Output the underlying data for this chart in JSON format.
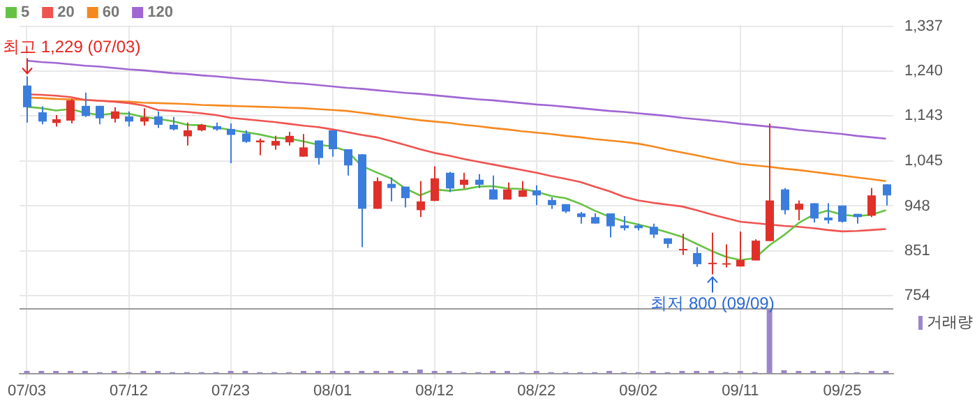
{
  "chart_data": {
    "type": "candlestick",
    "categories": [
      "07/03",
      null,
      null,
      null,
      null,
      null,
      null,
      "07/12",
      null,
      null,
      null,
      null,
      null,
      null,
      "07/23",
      null,
      null,
      null,
      null,
      null,
      null,
      "08/01",
      null,
      null,
      null,
      null,
      null,
      null,
      "08/12",
      null,
      null,
      null,
      null,
      null,
      null,
      "08/22",
      null,
      null,
      null,
      null,
      null,
      null,
      "09/02",
      null,
      null,
      null,
      null,
      null,
      null,
      "09/11",
      null,
      null,
      null,
      null,
      null,
      null,
      "09/25",
      null,
      null,
      null
    ],
    "ohlc": [
      [
        1209,
        1229,
        1129,
        1162
      ],
      [
        1151,
        1164,
        1125,
        1131
      ],
      [
        1128,
        1145,
        1120,
        1136
      ],
      [
        1133,
        1180,
        1127,
        1177
      ],
      [
        1165,
        1194,
        1141,
        1143
      ],
      [
        1165,
        1165,
        1125,
        1138
      ],
      [
        1137,
        1162,
        1129,
        1153
      ],
      [
        1142,
        1153,
        1120,
        1131
      ],
      [
        1131,
        1160,
        1122,
        1140
      ],
      [
        1142,
        1153,
        1117,
        1124
      ],
      [
        1124,
        1141,
        1112,
        1114
      ],
      [
        1099,
        1129,
        1079,
        1112
      ],
      [
        1112,
        1126,
        1110,
        1124
      ],
      [
        1121,
        1129,
        1111,
        1114
      ],
      [
        1115,
        1127,
        1041,
        1102
      ],
      [
        1105,
        1112,
        1085,
        1087
      ],
      [
        1086,
        1094,
        1058,
        1090
      ],
      [
        1079,
        1100,
        1070,
        1089
      ],
      [
        1086,
        1109,
        1079,
        1100
      ],
      [
        1055,
        1104,
        1055,
        1075
      ],
      [
        1090,
        1090,
        1038,
        1052
      ],
      [
        1112,
        1112,
        1055,
        1071
      ],
      [
        1071,
        1071,
        1014,
        1036
      ],
      [
        1060,
        1060,
        859,
        942
      ],
      [
        942,
        1010,
        942,
        1002
      ],
      [
        996,
        1010,
        958,
        987
      ],
      [
        990,
        990,
        945,
        965
      ],
      [
        939,
        1002,
        924,
        958
      ],
      [
        959,
        1034,
        959,
        1008
      ],
      [
        1020,
        1022,
        978,
        986
      ],
      [
        994,
        1020,
        986,
        1005
      ],
      [
        1005,
        1017,
        987,
        994
      ],
      [
        984,
        1014,
        962,
        962
      ],
      [
        962,
        999,
        962,
        984
      ],
      [
        968,
        1002,
        968,
        982
      ],
      [
        982,
        993,
        950,
        971
      ],
      [
        961,
        967,
        942,
        950
      ],
      [
        952,
        952,
        933,
        936
      ],
      [
        932,
        935,
        910,
        924
      ],
      [
        924,
        932,
        910,
        910
      ],
      [
        932,
        932,
        880,
        904
      ],
      [
        906,
        926,
        895,
        900
      ],
      [
        906,
        910,
        895,
        900
      ],
      [
        903,
        910,
        879,
        886
      ],
      [
        878,
        878,
        857,
        866
      ],
      [
        852,
        888,
        842,
        855
      ],
      [
        846,
        859,
        816,
        822
      ],
      [
        823,
        890,
        800,
        825
      ],
      [
        822,
        865,
        815,
        824
      ],
      [
        817,
        893,
        817,
        831
      ],
      [
        830,
        876,
        830,
        873
      ],
      [
        872,
        1127,
        872,
        960
      ],
      [
        984,
        987,
        930,
        939
      ],
      [
        940,
        960,
        917,
        953
      ],
      [
        954,
        954,
        912,
        921
      ],
      [
        923,
        954,
        910,
        917
      ],
      [
        949,
        949,
        912,
        914
      ],
      [
        931,
        931,
        910,
        924
      ],
      [
        927,
        987,
        924,
        971
      ],
      [
        995,
        995,
        949,
        971
      ]
    ],
    "colors": [
      "#3b7ddd",
      "#3b7ddd",
      "#e0302a",
      "#e0302a",
      "#3b7ddd",
      "#3b7ddd",
      "#e0302a",
      "#3b7ddd",
      "#e0302a",
      "#3b7ddd",
      "#3b7ddd",
      "#e0302a",
      "#e0302a",
      "#3b7ddd",
      "#3b7ddd",
      "#3b7ddd",
      "#e0302a",
      "#e0302a",
      "#e0302a",
      "#e0302a",
      "#3b7ddd",
      "#3b7ddd",
      "#3b7ddd",
      "#3b7ddd",
      "#e0302a",
      "#3b7ddd",
      "#3b7ddd",
      "#e0302a",
      "#e0302a",
      "#3b7ddd",
      "#e0302a",
      "#3b7ddd",
      "#3b7ddd",
      "#e0302a",
      "#e0302a",
      "#3b7ddd",
      "#3b7ddd",
      "#3b7ddd",
      "#3b7ddd",
      "#3b7ddd",
      "#3b7ddd",
      "#3b7ddd",
      "#3b7ddd",
      "#3b7ddd",
      "#3b7ddd",
      "#e0302a",
      "#3b7ddd",
      "#e0302a",
      "#e0302a",
      "#e0302a",
      "#e0302a",
      "#e0302a",
      "#3b7ddd",
      "#e0302a",
      "#3b7ddd",
      "#3b7ddd",
      "#3b7ddd",
      "#3b7ddd",
      "#e0302a",
      "#3b7ddd"
    ],
    "series": [
      {
        "name": "5",
        "type": "line",
        "color": "#66c244",
        "values": [
          1163,
          1160,
          1155,
          1158,
          1150,
          1145,
          1149,
          1148,
          1141,
          1137,
          1132,
          1124,
          1123,
          1118,
          1113,
          1108,
          1103,
          1096,
          1094,
          1088,
          1081,
          1077,
          1067,
          1035,
          1021,
          1008,
          986,
          971,
          984,
          981,
          984,
          990,
          991,
          986,
          985,
          979,
          970,
          965,
          953,
          938,
          925,
          915,
          908,
          900,
          891,
          881,
          866,
          851,
          838,
          831,
          835,
          863,
          885,
          911,
          929,
          938,
          929,
          926,
          929,
          939
        ]
      },
      {
        "name": "20",
        "type": "line",
        "color": "#ef5350",
        "values": [
          1190,
          1189,
          1187,
          1184,
          1178,
          1176,
          1174,
          1171,
          1166,
          1156,
          1154,
          1152,
          1149,
          1145,
          1139,
          1136,
          1133,
          1130,
          1126,
          1122,
          1119,
          1114,
          1108,
          1102,
          1097,
          1089,
          1080,
          1071,
          1063,
          1057,
          1050,
          1044,
          1038,
          1032,
          1026,
          1020,
          1013,
          1007,
          1000,
          990,
          980,
          968,
          960,
          955,
          951,
          947,
          939,
          930,
          922,
          914,
          911,
          908,
          905,
          903,
          900,
          896,
          893,
          894,
          896,
          898
        ]
      },
      {
        "name": "60",
        "type": "line",
        "color": "#f5891f",
        "values": [
          1183,
          1182,
          1180,
          1179,
          1178,
          1176,
          1175,
          1174,
          1172,
          1171,
          1170,
          1169,
          1167,
          1166,
          1165,
          1164,
          1163,
          1162,
          1161,
          1160,
          1158,
          1156,
          1154,
          1150,
          1146,
          1142,
          1138,
          1134,
          1131,
          1128,
          1124,
          1121,
          1117,
          1114,
          1110,
          1107,
          1104,
          1100,
          1097,
          1093,
          1090,
          1087,
          1083,
          1077,
          1070,
          1064,
          1058,
          1051,
          1045,
          1039,
          1036,
          1033,
          1029,
          1026,
          1022,
          1018,
          1014,
          1010,
          1006,
          1002
        ]
      },
      {
        "name": "120",
        "type": "line",
        "color": "#a066d3",
        "values": [
          1263,
          1260,
          1258,
          1255,
          1252,
          1250,
          1247,
          1244,
          1242,
          1239,
          1236,
          1234,
          1231,
          1229,
          1226,
          1223,
          1221,
          1218,
          1215,
          1213,
          1210,
          1207,
          1204,
          1202,
          1199,
          1196,
          1193,
          1191,
          1188,
          1185,
          1182,
          1179,
          1177,
          1174,
          1171,
          1168,
          1166,
          1163,
          1160,
          1157,
          1154,
          1152,
          1149,
          1146,
          1143,
          1139,
          1136,
          1133,
          1130,
          1126,
          1123,
          1120,
          1117,
          1113,
          1110,
          1107,
          1104,
          1100,
          1097,
          1094
        ]
      },
      {
        "type": "bar",
        "axis": "y2",
        "color": "#9b86c9",
        "values": [
          0.04,
          0.04,
          0.04,
          0.04,
          0.04,
          0.02,
          0.04,
          0.02,
          0.04,
          0.04,
          0.02,
          0.02,
          0.02,
          0.02,
          0.04,
          0.04,
          0.02,
          0.02,
          0.02,
          0.04,
          0.04,
          0.04,
          0.04,
          0.04,
          0.04,
          0.04,
          0.04,
          0.06,
          0.04,
          0.04,
          0.02,
          0.02,
          0.04,
          0.04,
          0.02,
          0.04,
          0.02,
          0.02,
          0.02,
          0.02,
          0.04,
          0.02,
          0.02,
          0.04,
          0.02,
          0.04,
          0.04,
          0.04,
          0.02,
          0.04,
          0.02,
          1,
          0.05,
          0.04,
          0.04,
          0.04,
          0.04,
          0.02,
          0.04,
          0.04
        ]
      }
    ],
    "ylim": [
      725,
      1340
    ],
    "y2label": "거래량",
    "yticks": [
      {
        "value": 754,
        "label": "754"
      },
      {
        "value": 851,
        "label": "851"
      },
      {
        "value": 948,
        "label": "948"
      },
      {
        "value": 1045,
        "label": "1,045"
      },
      {
        "value": 1143,
        "label": "1,143"
      },
      {
        "value": 1240,
        "label": "1,240"
      },
      {
        "value": 1337,
        "label": "1,337"
      }
    ],
    "annotations": [
      {
        "text": "최고 1,229 (07/03)",
        "x": "07/03",
        "y": 1229
      },
      {
        "text": "최저 800 (09/09)",
        "y": 800
      }
    ],
    "grid": true,
    "legend": "top left",
    "marker": "none",
    "line_style": "solid"
  }
}
